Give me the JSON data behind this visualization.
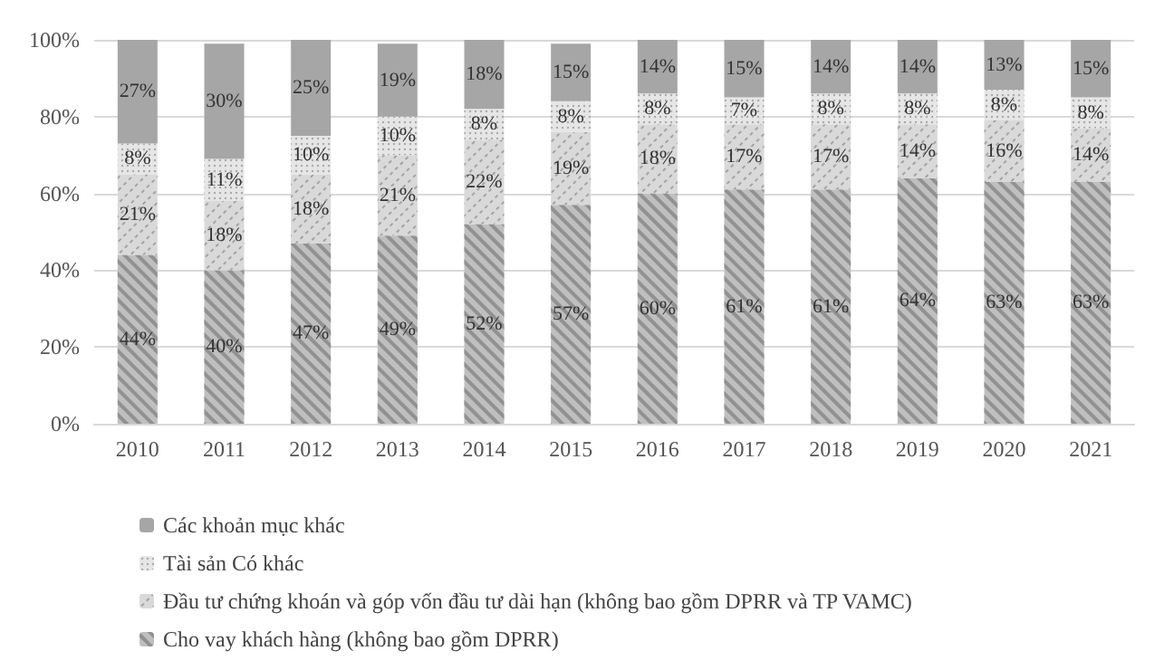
{
  "chart_data": {
    "type": "bar",
    "stacked": true,
    "categories": [
      "2010",
      "2011",
      "2012",
      "2013",
      "2014",
      "2015",
      "2016",
      "2017",
      "2018",
      "2019",
      "2020",
      "2021"
    ],
    "series": [
      {
        "name": "Cho vay khách hàng (không bao gồm DPRR)",
        "color": "#bfbfbf",
        "values": [
          44,
          40,
          47,
          49,
          52,
          57,
          60,
          61,
          61,
          64,
          63,
          63
        ],
        "value_labels": [
          "44%",
          "40%",
          "47%",
          "49%",
          "52%",
          "57%",
          "60%",
          "61%",
          "61%",
          "64%",
          "63%",
          "63%"
        ]
      },
      {
        "name": "Đầu tư chứng khoán và góp vốn đầu tư dài hạn (không bao gồm DPRR và TP VAMC)",
        "color": "#d9d9d9",
        "values": [
          21,
          18,
          18,
          21,
          22,
          19,
          18,
          17,
          17,
          14,
          16,
          14
        ],
        "value_labels": [
          "21%",
          "18%",
          "18%",
          "21%",
          "22%",
          "19%",
          "18%",
          "17%",
          "17%",
          "14%",
          "16%",
          "14%"
        ]
      },
      {
        "name": "Tài sản Có khác",
        "color": "#e6e6e6",
        "values": [
          8,
          11,
          10,
          10,
          8,
          8,
          8,
          7,
          8,
          8,
          8,
          8
        ],
        "value_labels": [
          "8%",
          "11%",
          "10%",
          "10%",
          "8%",
          "8%",
          "8%",
          "7%",
          "8%",
          "8%",
          "8%",
          "8%"
        ]
      },
      {
        "name": "Các khoản mục khác",
        "color": "#a6a6a6",
        "values": [
          27,
          30,
          25,
          19,
          18,
          15,
          14,
          15,
          14,
          14,
          13,
          15
        ],
        "value_labels": [
          "27%",
          "30%",
          "25%",
          "19%",
          "18%",
          "15%",
          "14%",
          "15%",
          "14%",
          "14%",
          "13%",
          "15%"
        ]
      }
    ],
    "ylim": [
      0,
      100
    ],
    "yticks": [
      {
        "value": 0,
        "label": "0%"
      },
      {
        "value": 20,
        "label": "20%"
      },
      {
        "value": 40,
        "label": "40%"
      },
      {
        "value": 60,
        "label": "60%"
      },
      {
        "value": 80,
        "label": "80%"
      },
      {
        "value": 100,
        "label": "100%"
      }
    ],
    "grid": "y",
    "legend": "bottom"
  }
}
